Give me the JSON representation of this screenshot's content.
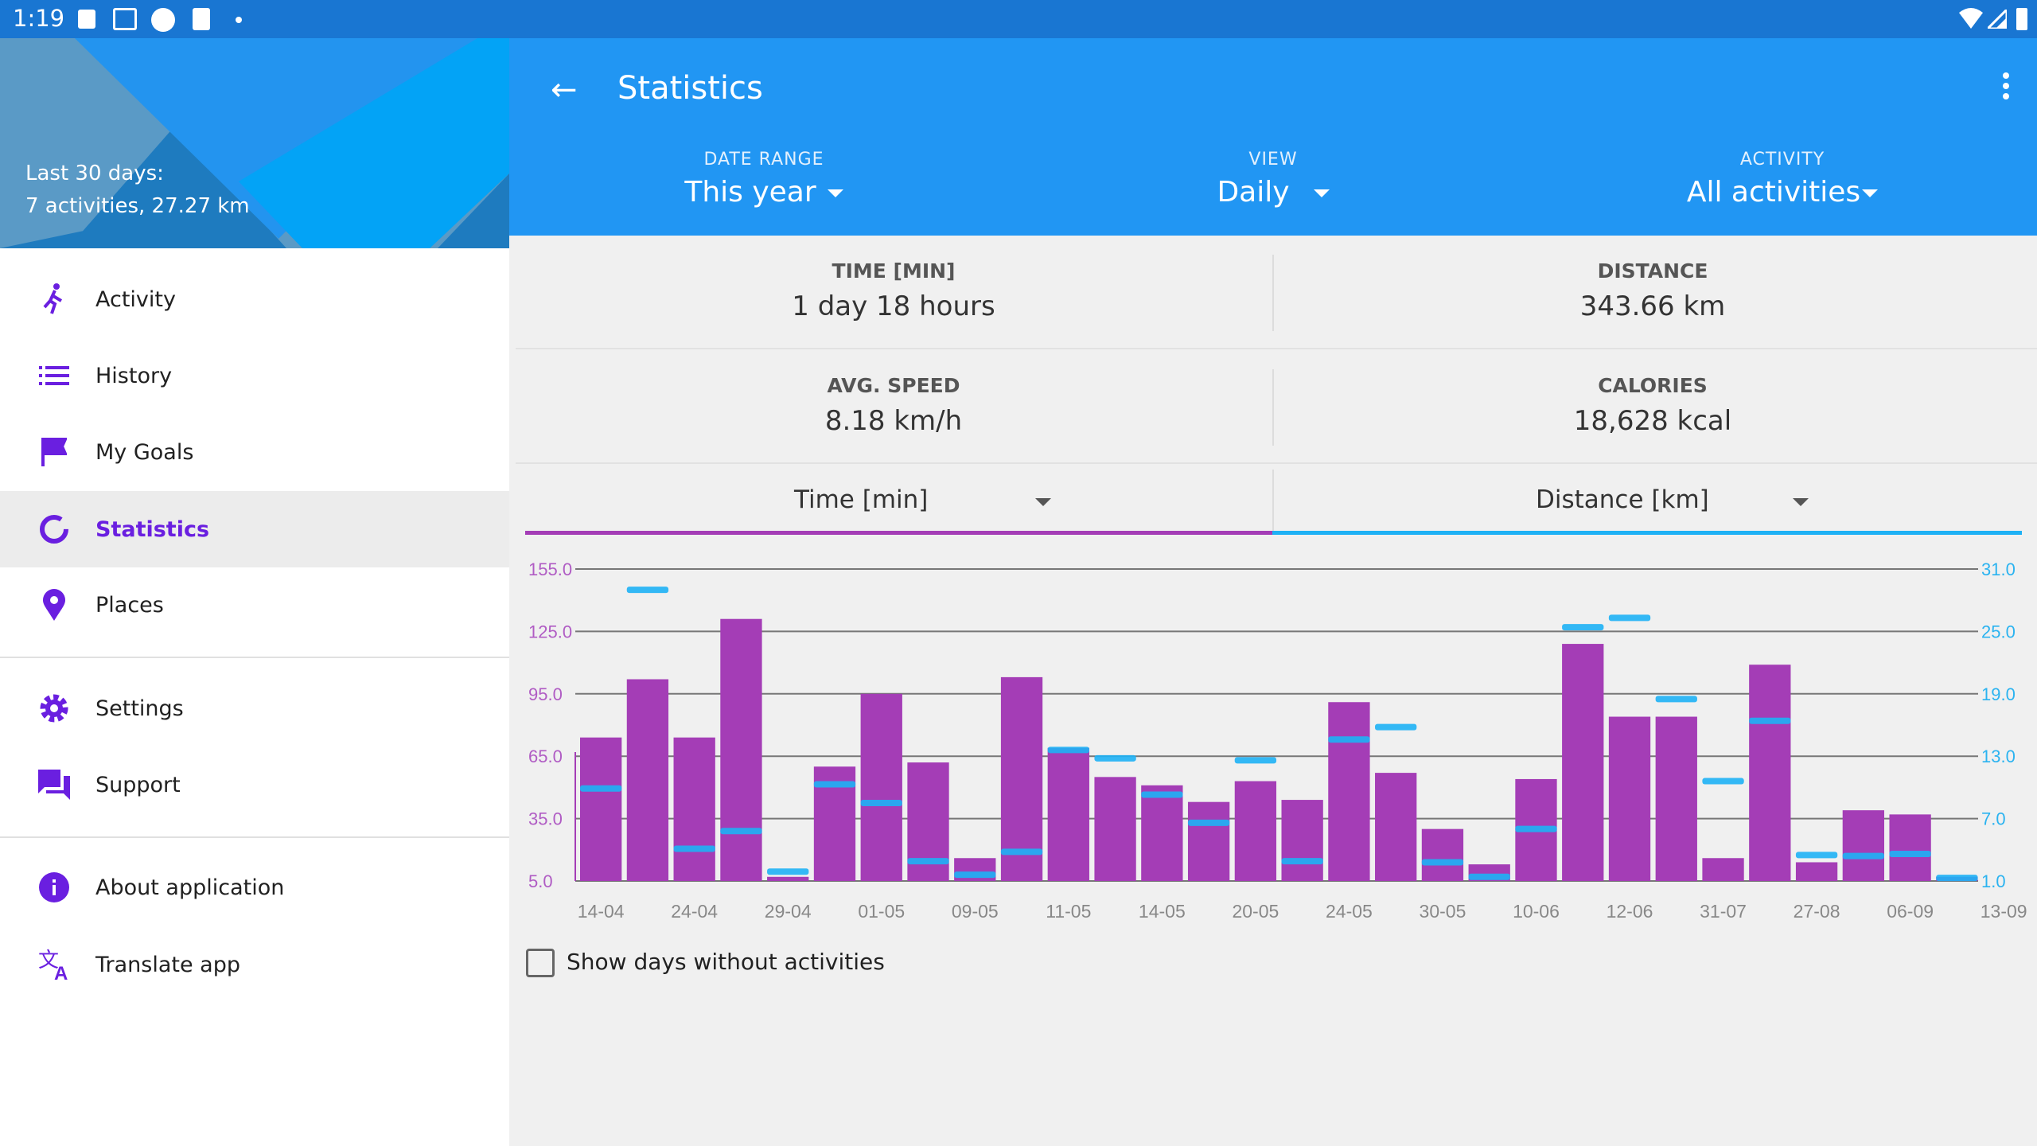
{
  "status_bar": {
    "time": "1:19"
  },
  "drawer": {
    "summary_line1": "Last 30 days:",
    "summary_line2": "7 activities, 27.27 km",
    "items": [
      {
        "label": "Activity",
        "icon": "running-icon"
      },
      {
        "label": "History",
        "icon": "list-icon"
      },
      {
        "label": "My Goals",
        "icon": "flag-icon"
      },
      {
        "label": "Statistics",
        "icon": "donut-chart-icon",
        "active": true
      },
      {
        "label": "Places",
        "icon": "location-pin-icon"
      },
      {
        "label": "Settings",
        "icon": "gear-icon"
      },
      {
        "label": "Support",
        "icon": "chat-icon"
      },
      {
        "label": "About application",
        "icon": "info-icon"
      },
      {
        "label": "Translate app",
        "icon": "translate-icon"
      }
    ]
  },
  "toolbar": {
    "title": "Statistics"
  },
  "filters": [
    {
      "label": "DATE RANGE",
      "value": "This year"
    },
    {
      "label": "VIEW",
      "value": "Daily"
    },
    {
      "label": "ACTIVITY",
      "value": "All activities"
    }
  ],
  "stats": [
    {
      "label": "TIME [MIN]",
      "value": "1 day 18 hours"
    },
    {
      "label": "DISTANCE",
      "value": "343.66 km"
    },
    {
      "label": "AVG. SPEED",
      "value": "8.18 km/h"
    },
    {
      "label": "CALORIES",
      "value": "18,628 kcal"
    }
  ],
  "series_selectors": {
    "left": "Time [min]",
    "right": "Distance [km]"
  },
  "show_days_without_activities": {
    "label": "Show days without activities",
    "checked": false
  },
  "colors": {
    "primary": "#2196f3",
    "status": "#1976d2",
    "bar": "#a43db6",
    "marker": "#1eb1f5",
    "accent": "#6a1fe0"
  },
  "chart_data": {
    "type": "bar",
    "series": [
      {
        "name": "Time [min]",
        "axis": "left",
        "values": [
          74,
          102,
          74,
          131,
          7,
          60,
          95,
          62,
          16,
          103,
          69,
          55,
          51,
          43,
          53,
          44,
          91,
          57,
          30,
          13,
          54,
          119,
          84,
          84,
          16,
          109,
          14,
          39,
          37,
          7
        ]
      },
      {
        "name": "Distance [km]",
        "axis": "right",
        "style": "marker",
        "values": [
          9.9,
          29,
          4.1,
          5.8,
          1.9,
          10.3,
          8.5,
          2.9,
          1.6,
          3.8,
          13.6,
          12.8,
          9.3,
          6.6,
          12.6,
          2.9,
          14.6,
          15.8,
          2.8,
          1.4,
          6,
          25.4,
          26.3,
          18.5,
          10.6,
          16.4,
          3.5,
          3.4,
          3.6,
          1.3
        ]
      }
    ],
    "x_tick_labels": [
      "14-04",
      "24-04",
      "29-04",
      "01-05",
      "09-05",
      "11-05",
      "14-05",
      "20-05",
      "24-05",
      "30-05",
      "10-06",
      "12-06",
      "31-07",
      "27-08",
      "06-09",
      "13-09"
    ],
    "x_tick_labels_shown": [
      "14-04",
      "24-04",
      "29-04",
      "01-05",
      "09-05",
      "11-05",
      "14-05",
      "20-05",
      "24-05",
      "30-05",
      "10-06",
      "12-06",
      "31-07",
      "27-08",
      "06-09",
      "13-09"
    ],
    "y_left_ticks": [
      "5.0",
      "35.0",
      "65.0",
      "95.0",
      "125.0",
      "155.0"
    ],
    "y_right_ticks": [
      "1.0",
      "7.0",
      "13.0",
      "19.0",
      "25.0",
      "31.0"
    ],
    "ylim_left": [
      5,
      155
    ],
    "ylim_right": [
      1,
      31
    ],
    "grid": true
  }
}
